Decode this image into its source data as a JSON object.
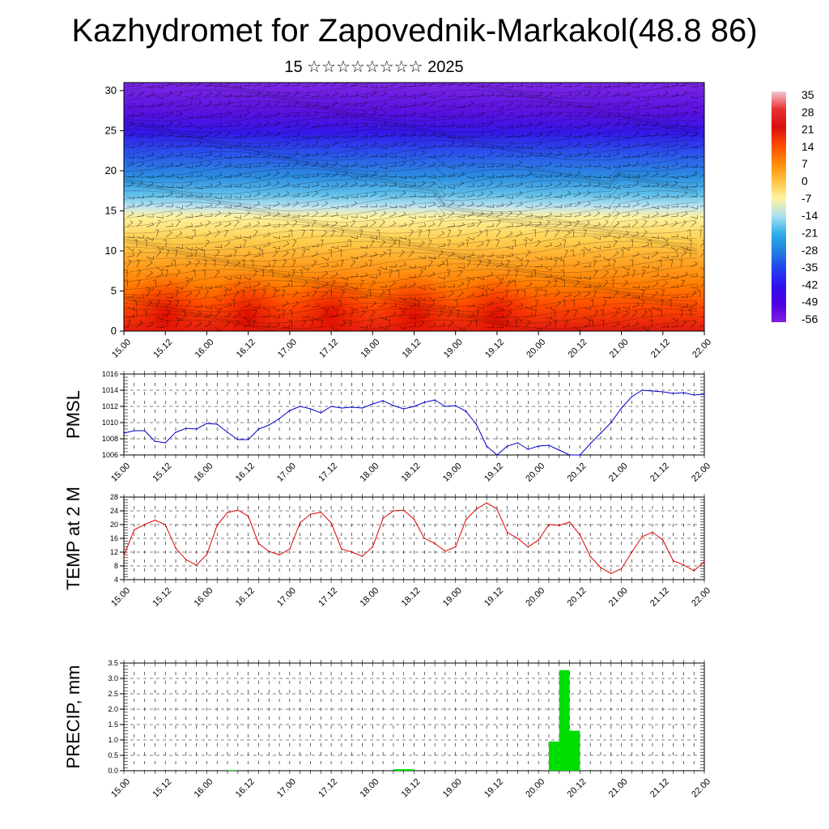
{
  "title": "Kazhydromet for Zapovednik-Markakol(48.8 86)",
  "subtitle": "15 ☆☆☆☆☆☆☆☆ 2025",
  "chart_data": [
    {
      "type": "heatmap",
      "title": "",
      "ylabel": "",
      "ylim": [
        0,
        31
      ],
      "xlim": [
        15.0,
        22.0
      ],
      "yticks": [
        "0",
        "5",
        "10",
        "15",
        "20",
        "25",
        "30"
      ],
      "xticks": [
        "15.00",
        "15.12",
        "16.00",
        "16.12",
        "17.00",
        "17.12",
        "18.00",
        "18.12",
        "19.00",
        "19.12",
        "20.00",
        "20.12",
        "21.00",
        "21.12",
        "22.00"
      ],
      "colorbar": {
        "labels": [
          "35",
          "28",
          "21",
          "14",
          "7",
          "0",
          "-7",
          "-14",
          "-21",
          "-28",
          "-35",
          "-42",
          "-49",
          "-56"
        ],
        "stops": [
          "#f2c8d0",
          "#e83030",
          "#d81010",
          "#ff4a00",
          "#ff8a00",
          "#ffc040",
          "#fff4a0",
          "#b0e0f0",
          "#30b0e8",
          "#2080e0",
          "#2040f0",
          "#3010f0",
          "#5000e0",
          "#8020e0"
        ]
      },
      "colors": {
        "bands": [
          "#e01a10",
          "#ff4a00",
          "#ff7a00",
          "#ffa020",
          "#ffd050",
          "#fff2a0",
          "#c0e4f0",
          "#60c0ea",
          "#2c8ee0",
          "#2a50ec",
          "#3318e8",
          "#5a10e0",
          "#7a28e4"
        ]
      }
    },
    {
      "type": "line",
      "ylabel": "PMSL",
      "ylim": [
        1006,
        1016
      ],
      "yticks": [
        "1006",
        "1008",
        "1010",
        "1012",
        "1014",
        "1016"
      ],
      "xticks": [
        "15.00",
        "15.12",
        "16.00",
        "16.12",
        "17.00",
        "17.12",
        "18.00",
        "18.12",
        "19.00",
        "19.12",
        "20.00",
        "20.12",
        "21.00",
        "21.12",
        "22.00"
      ],
      "x": [
        15.0,
        15.125,
        15.25,
        15.375,
        15.5,
        15.625,
        15.75,
        15.875,
        16.0,
        16.125,
        16.25,
        16.375,
        16.5,
        16.625,
        16.75,
        16.875,
        17.0,
        17.125,
        17.25,
        17.375,
        17.5,
        17.625,
        17.75,
        17.875,
        18.0,
        18.125,
        18.25,
        18.375,
        18.5,
        18.625,
        18.75,
        18.875,
        19.0,
        19.125,
        19.25,
        19.375,
        19.5,
        19.625,
        19.75,
        19.875,
        20.0,
        20.125,
        20.25,
        20.375,
        20.5,
        20.625,
        20.75,
        20.875,
        21.0,
        21.125,
        21.25,
        21.375,
        21.5,
        21.625,
        21.75,
        21.875,
        22.0
      ],
      "series": [
        {
          "values": [
            1008.7,
            1009.0,
            1009.0,
            1007.7,
            1007.5,
            1008.8,
            1009.3,
            1009.2,
            1009.9,
            1009.8,
            1008.8,
            1007.9,
            1007.9,
            1009.2,
            1009.7,
            1010.5,
            1011.5,
            1012.0,
            1011.7,
            1011.2,
            1012.0,
            1011.8,
            1011.9,
            1011.8,
            1012.3,
            1012.7,
            1012.1,
            1011.7,
            1012.0,
            1012.5,
            1012.8,
            1012.0,
            1012.1,
            1011.4,
            1009.8,
            1007.1,
            1006.0,
            1007.1,
            1007.5,
            1006.7,
            1007.1,
            1007.2,
            1006.6,
            1006.0,
            1006.0,
            1007.4,
            1008.7,
            1010.0,
            1011.8,
            1013.2,
            1014.0,
            1013.9,
            1013.8,
            1013.6,
            1013.7,
            1013.4,
            1013.5
          ]
        }
      ],
      "colors": {
        "line": "#0000cc"
      }
    },
    {
      "type": "line",
      "ylabel": "TEMP at 2 M",
      "ylim": [
        4,
        28
      ],
      "yticks": [
        "4",
        "8",
        "12",
        "16",
        "20",
        "24",
        "28"
      ],
      "xticks": [
        "15.00",
        "15.12",
        "16.00",
        "16.12",
        "17.00",
        "17.12",
        "18.00",
        "18.12",
        "19.00",
        "19.12",
        "20.00",
        "20.12",
        "21.00",
        "21.12",
        "22.00"
      ],
      "x": [
        15.0,
        15.125,
        15.25,
        15.375,
        15.5,
        15.625,
        15.75,
        15.875,
        16.0,
        16.125,
        16.25,
        16.375,
        16.5,
        16.625,
        16.75,
        16.875,
        17.0,
        17.125,
        17.25,
        17.375,
        17.5,
        17.625,
        17.75,
        17.875,
        18.0,
        18.125,
        18.25,
        18.375,
        18.5,
        18.625,
        18.75,
        18.875,
        19.0,
        19.125,
        19.25,
        19.375,
        19.5,
        19.625,
        19.75,
        19.875,
        20.0,
        20.125,
        20.25,
        20.375,
        20.5,
        20.625,
        20.75,
        20.875,
        21.0,
        21.125,
        21.25,
        21.375,
        21.5,
        21.625,
        21.75,
        21.875,
        22.0
      ],
      "series": [
        {
          "values": [
            11.0,
            18.5,
            20.0,
            21.3,
            20.0,
            13.2,
            9.8,
            8.2,
            11.3,
            19.8,
            23.5,
            24.2,
            22.5,
            14.5,
            12.2,
            11.2,
            12.9,
            20.6,
            23.0,
            23.6,
            20.5,
            12.9,
            12.0,
            10.8,
            13.5,
            21.8,
            24.0,
            24.2,
            21.5,
            16.0,
            14.5,
            12.3,
            13.5,
            21.4,
            24.5,
            26.3,
            24.5,
            17.7,
            16.0,
            13.5,
            15.5,
            20.0,
            19.8,
            20.7,
            17.0,
            10.7,
            7.5,
            5.8,
            7.2,
            12.0,
            16.5,
            17.8,
            15.5,
            9.5,
            8.3,
            6.6,
            9.2
          ]
        }
      ],
      "colors": {
        "line": "#dd0000"
      }
    },
    {
      "type": "bar",
      "ylabel": "PRECIP, mm",
      "ylim": [
        0,
        3.5
      ],
      "yticks": [
        "0.0",
        "0.5",
        "1.0",
        "1.5",
        "2.0",
        "2.5",
        "3.0",
        "3.5"
      ],
      "xticks": [
        "15.00",
        "15.12",
        "16.00",
        "16.12",
        "17.00",
        "17.12",
        "18.00",
        "18.12",
        "19.00",
        "19.12",
        "20.00",
        "20.12",
        "21.00",
        "21.12",
        "22.00"
      ],
      "x": [
        16.25,
        18.25,
        18.375,
        20.125,
        20.25,
        20.375
      ],
      "values": [
        0.02,
        0.05,
        0.05,
        0.95,
        3.27,
        1.3
      ],
      "colors": {
        "bar": "#00dd00"
      }
    }
  ]
}
